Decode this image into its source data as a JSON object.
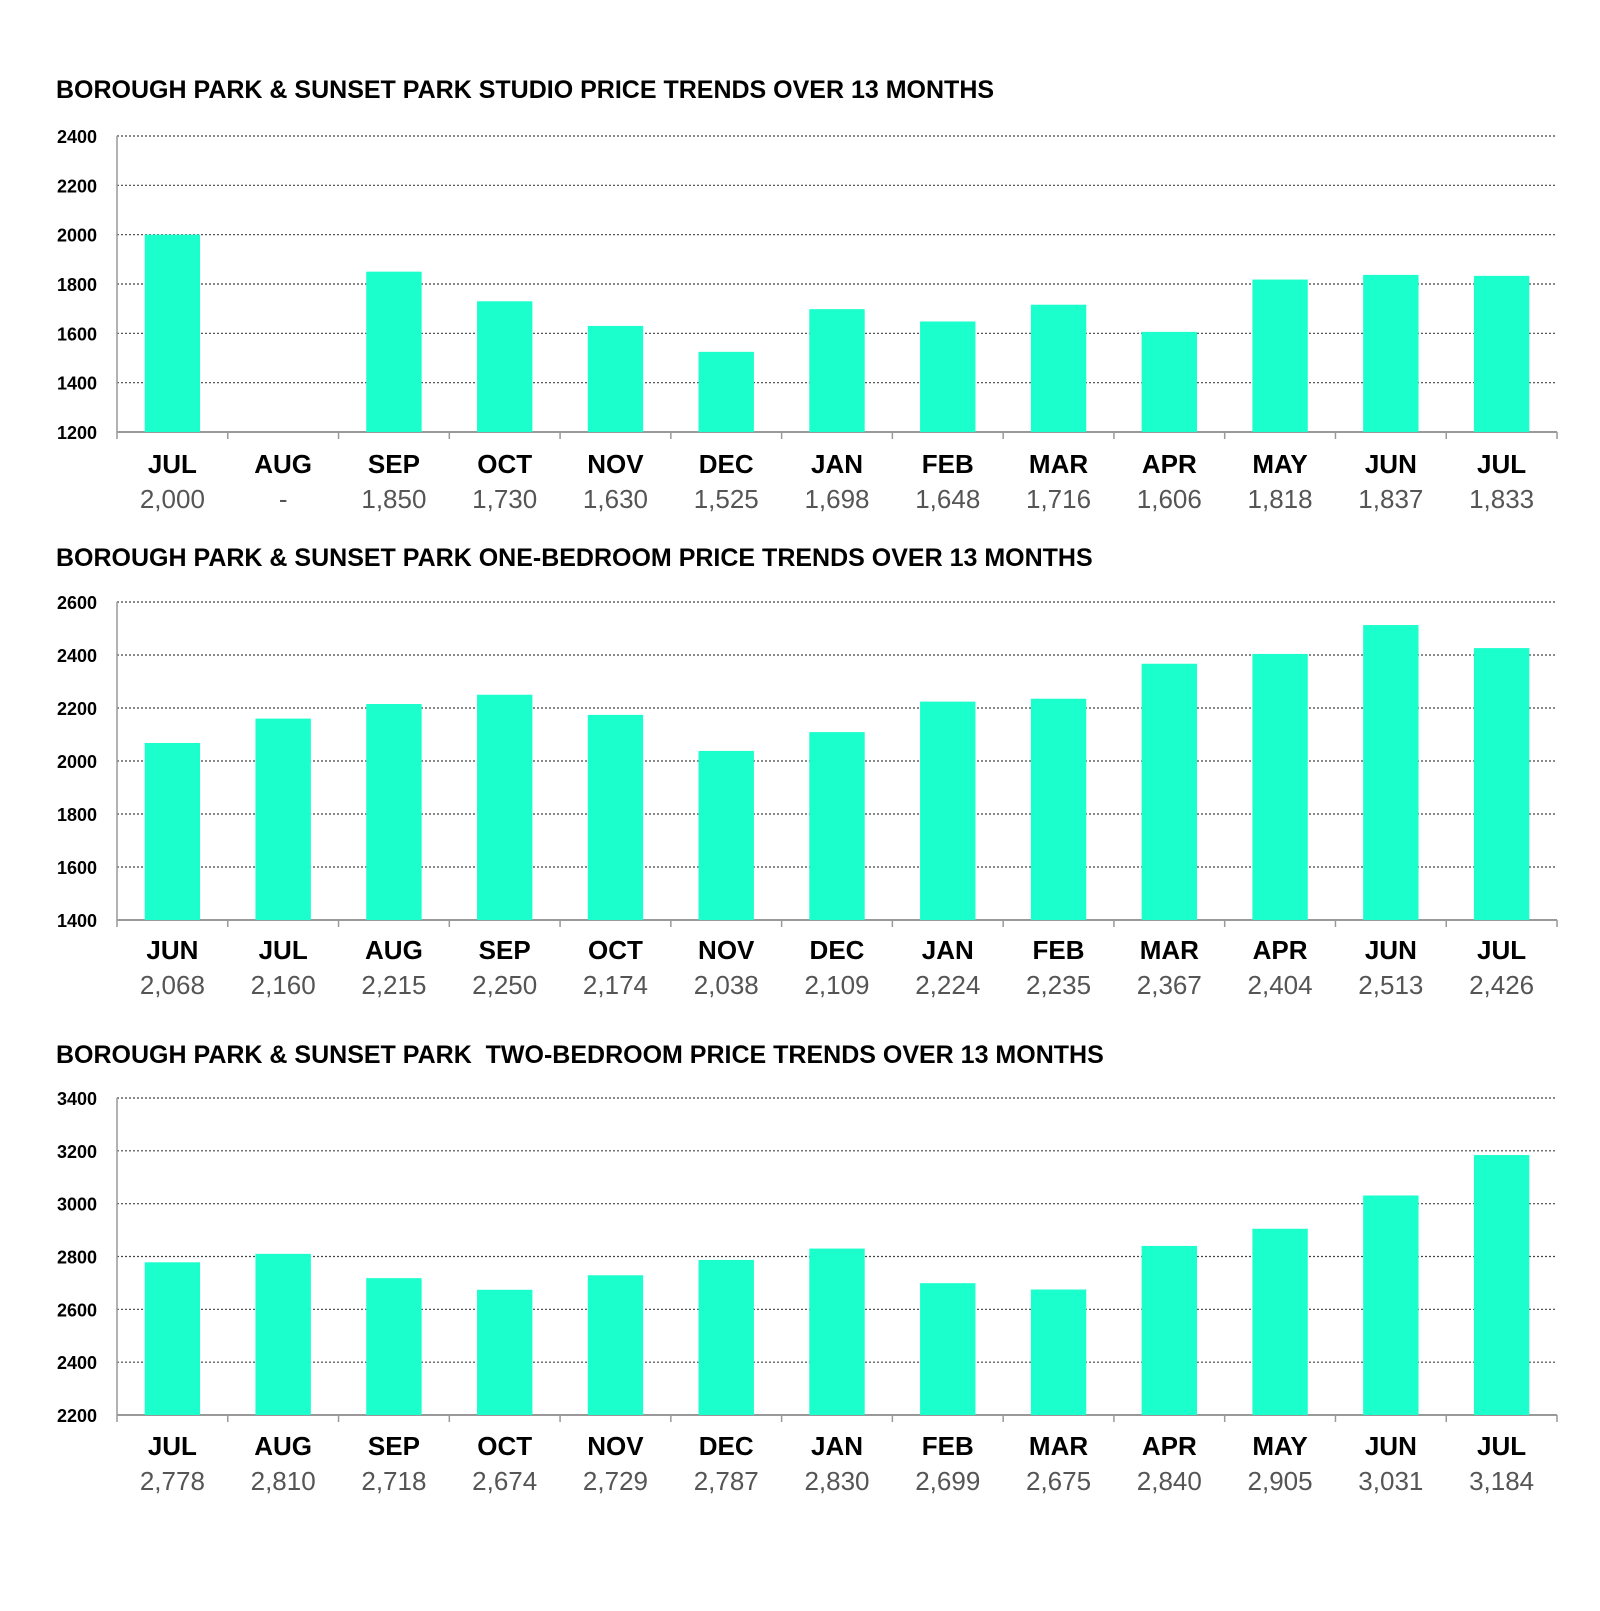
{
  "colors": {
    "bar": "#1affcc",
    "grid": "#444444",
    "axis": "#999999",
    "value_text": "#555555"
  },
  "chart_data": [
    {
      "type": "bar",
      "title": "BOROUGH PARK & SUNSET PARK STUDIO PRICE TRENDS OVER 13 MONTHS",
      "categories": [
        "JUL",
        "AUG",
        "SEP",
        "OCT",
        "NOV",
        "DEC",
        "JAN",
        "FEB",
        "MAR",
        "APR",
        "MAY",
        "JUN",
        "JUL"
      ],
      "values": [
        2000,
        null,
        1850,
        1730,
        1630,
        1525,
        1698,
        1648,
        1716,
        1606,
        1818,
        1837,
        1833
      ],
      "value_labels": [
        "2,000",
        "-",
        "1,850",
        "1,730",
        "1,630",
        "1,525",
        "1,698",
        "1,648",
        "1,716",
        "1,606",
        "1,818",
        "1,837",
        "1,833"
      ],
      "ylim": [
        1200,
        2400
      ],
      "yticks": [
        1200,
        1400,
        1600,
        1800,
        2000,
        2200,
        2400
      ],
      "grid": true,
      "xlabel": "",
      "ylabel": ""
    },
    {
      "type": "bar",
      "title": "BOROUGH PARK & SUNSET PARK ONE-BEDROOM PRICE TRENDS OVER 13 MONTHS",
      "categories": [
        "JUN",
        "JUL",
        "AUG",
        "SEP",
        "OCT",
        "NOV",
        "DEC",
        "JAN",
        "FEB",
        "MAR",
        "APR",
        "JUN",
        "JUL"
      ],
      "values": [
        2068,
        2160,
        2215,
        2250,
        2174,
        2038,
        2109,
        2224,
        2235,
        2367,
        2404,
        2513,
        2426
      ],
      "value_labels": [
        "2,068",
        "2,160",
        "2,215",
        "2,250",
        "2,174",
        "2,038",
        "2,109",
        "2,224",
        "2,235",
        "2,367",
        "2,404",
        "2,513",
        "2,426"
      ],
      "ylim": [
        1400,
        2600
      ],
      "yticks": [
        1400,
        1600,
        1800,
        2000,
        2200,
        2400,
        2600
      ],
      "grid": true,
      "xlabel": "",
      "ylabel": ""
    },
    {
      "type": "bar",
      "title": "BOROUGH PARK & SUNSET PARK  TWO-BEDROOM PRICE TRENDS OVER 13 MONTHS",
      "categories": [
        "JUL",
        "AUG",
        "SEP",
        "OCT",
        "NOV",
        "DEC",
        "JAN",
        "FEB",
        "MAR",
        "APR",
        "MAY",
        "JUN",
        "JUL"
      ],
      "values": [
        2778,
        2810,
        2718,
        2674,
        2729,
        2787,
        2830,
        2699,
        2675,
        2840,
        2905,
        3031,
        3184
      ],
      "value_labels": [
        "2,778",
        "2,810",
        "2,718",
        "2,674",
        "2,729",
        "2,787",
        "2,830",
        "2,699",
        "2,675",
        "2,840",
        "2,905",
        "3,031",
        "3,184"
      ],
      "ylim": [
        2200,
        3400
      ],
      "yticks": [
        2200,
        2400,
        2600,
        2800,
        3000,
        3200,
        3400
      ],
      "grid": true,
      "xlabel": "",
      "ylabel": ""
    }
  ]
}
